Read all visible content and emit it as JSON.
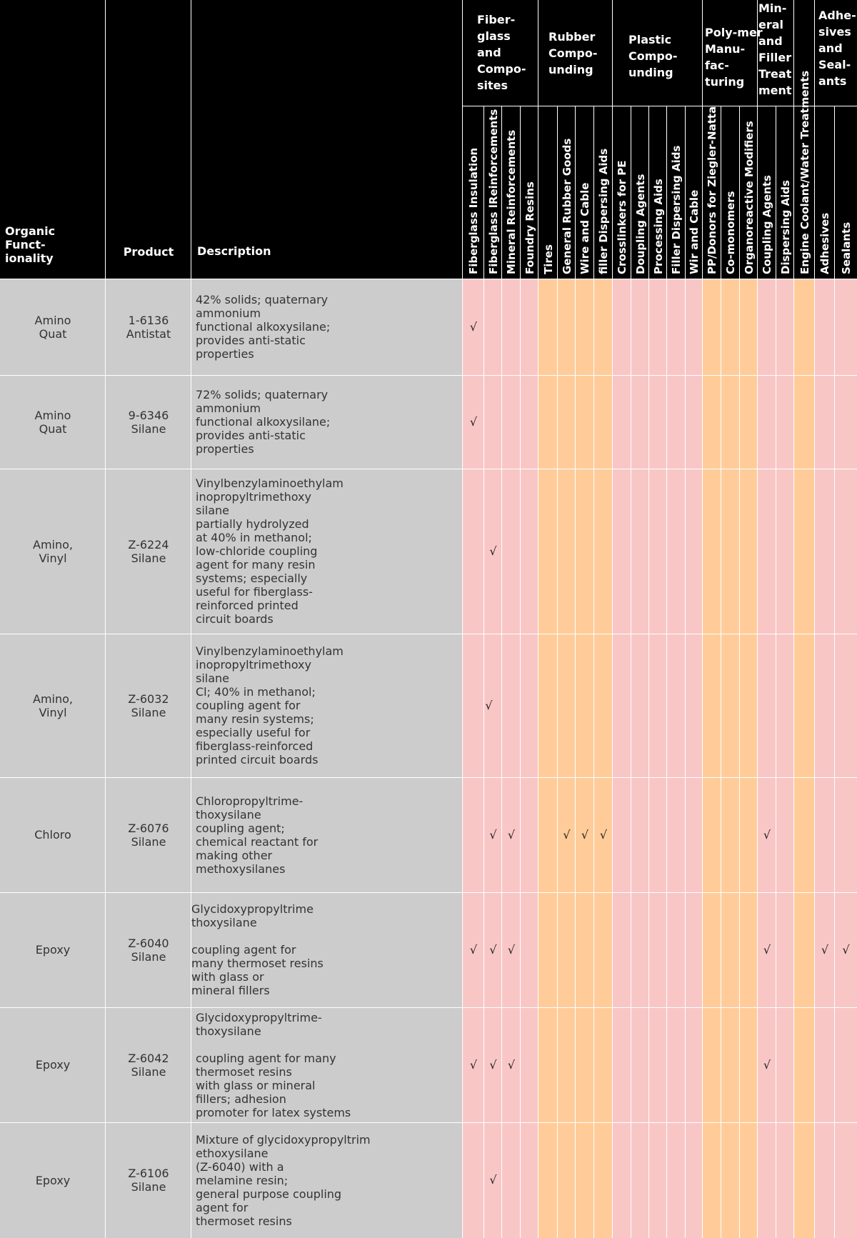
{
  "header": {
    "organic_functionality": "Organic\nFunct-\nionality",
    "product": "Product",
    "description": "Description"
  },
  "groups": [
    {
      "label": "Fiber-\nglass\nand\nCompo-\nsites"
    },
    {
      "label": "Rubber\nCompo-\nunding"
    },
    {
      "label": "Plastic\nCompo-\nunding"
    },
    {
      "label": "Poly-mer\nManu-\nfac-\nturing"
    },
    {
      "label": "Min-\neral\nand\nFiller\nTreat\nment"
    },
    {
      "label": ""
    },
    {
      "label": "Adhe-\nsives\nand\nSeal-\nants"
    }
  ],
  "columns": [
    "Fiberglass Insulation",
    "Fiberglass lReinforcements",
    "Mineral Reinforcements",
    "Foundry Resins",
    "Tires",
    "General Rubber Goods",
    "Wire and Cable",
    "filler Dispersing Aids",
    "Crosslinkers for PE",
    "Doupling Agents",
    "Processing Aids",
    "Filler Dispersing Aids",
    "Wir and Cable",
    "PP/Donors for Ziegler-Natta",
    "Co-monomers",
    "Organoreactive Modifiers",
    "Coupling Agents",
    "Dispersing Aids",
    "Engine Coolant/Water Treatments",
    "Adhesives",
    "Sealants"
  ],
  "check_symbol": "√",
  "colors": {
    "header_bg": "#000000",
    "pink": "#f9c6c6",
    "orange": "#ffcc99",
    "gray": "#cccccc"
  },
  "rows": [
    {
      "functionality": "Amino\nQuat",
      "product": "1-6136\nAntistat",
      "description": "42% solids; quaternary\nammonium\nfunctional alkoxysilane;\nprovides anti-static\n  properties",
      "checks": [
        0
      ]
    },
    {
      "functionality": "Amino\nQuat",
      "product": "9-6346\nSilane",
      "description": "72% solids; quaternary\nammonium\nfunctional alkoxysilane;\nprovides anti-static\n  properties",
      "checks": [
        0
      ]
    },
    {
      "functionality": "Amino,\nVinyl",
      "product": "Z-6224\nSilane",
      "description": "Vinylbenzylaminoethylam\ninopropyltrimethoxy\nsilane\npartially hydrolyzed\nat 40% in methanol;\nlow-chloride coupling\nagent for many resin\nsystems; especially\nuseful for fiberglass-\nreinforced printed\ncircuit boards",
      "checks": [
        1
      ]
    },
    {
      "functionality": "Amino,\nVinyl",
      "product": "Z-6032\nSilane",
      "description": "Vinylbenzylaminoethylam\ninopropyltrimethoxy\nsilane\nCl; 40% in methanol;\ncoupling agent for\nmany resin systems;\nespecially useful for\nfiberglass-reinforced\nprinted circuit boards",
      "checks": [
        1
      ]
    },
    {
      "functionality": "Chloro",
      "product": "Z-6076\nSilane",
      "description": "Chloropropyltrime-\nthoxysilane\ncoupling agent;\nchemical reactant for\nmaking other\nmethoxysilanes",
      "checks": [
        1,
        2,
        5,
        6,
        7,
        16
      ]
    },
    {
      "functionality": "Epoxy",
      "product": "Z-6040\nSilane",
      "description": "Glycidoxypropyltrime\nthoxysilane\n\ncoupling agent for\nmany thermoset resins\nwith glass or\nmineral fillers",
      "checks": [
        0,
        1,
        2,
        16,
        19,
        20
      ]
    },
    {
      "functionality": "Epoxy",
      "product": "Z-6042\nSilane",
      "description": "Glycidoxypropyltrime-\nthoxysilane\n\ncoupling agent for many\nthermoset resins\nwith glass or mineral\nfillers; adhesion\npromoter for latex systems",
      "checks": [
        0,
        1,
        2,
        16
      ]
    },
    {
      "functionality": "Epoxy",
      "product": "Z-6106\nSilane",
      "description": "Mixture of glycidoxypropyltrim\nethoxysilane\n(Z-6040) with a\nmelamine resin;\ngeneral purpose coupling\nagent for\nthermoset resins",
      "checks": [
        1
      ]
    }
  ]
}
